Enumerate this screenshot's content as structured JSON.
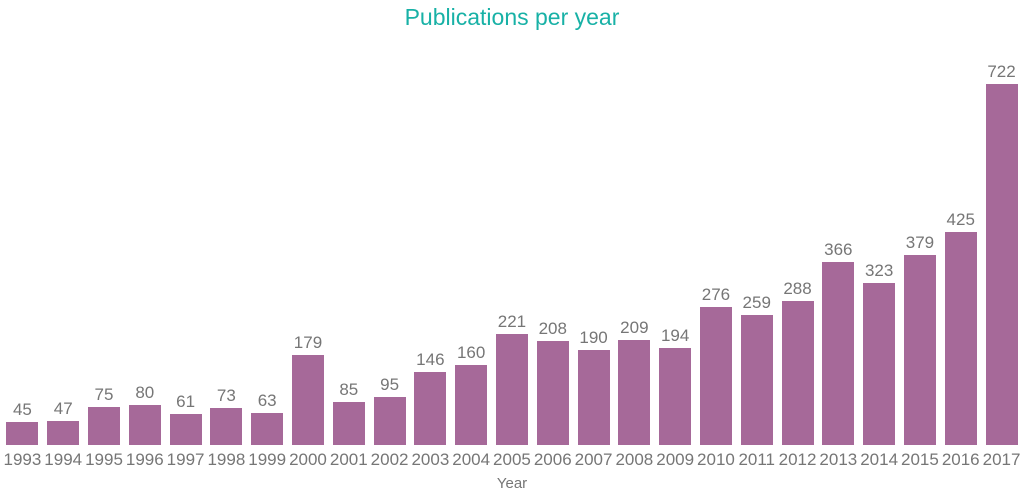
{
  "colors": {
    "bar": "#A66999",
    "title": "#18B1A6",
    "label": "#767676",
    "background": "#FFFFFF"
  },
  "chart_data": {
    "type": "bar",
    "title": "Publications per year",
    "xlabel": "Year",
    "ylabel": "",
    "categories": [
      "1993",
      "1994",
      "1995",
      "1996",
      "1997",
      "1998",
      "1999",
      "2000",
      "2001",
      "2002",
      "2003",
      "2004",
      "2005",
      "2006",
      "2007",
      "2008",
      "2009",
      "2010",
      "2011",
      "2012",
      "2013",
      "2014",
      "2015",
      "2016",
      "2017"
    ],
    "values": [
      45,
      47,
      75,
      80,
      61,
      73,
      63,
      179,
      85,
      95,
      146,
      160,
      221,
      208,
      190,
      209,
      194,
      276,
      259,
      288,
      366,
      323,
      379,
      425,
      722
    ],
    "ylim": [
      0,
      760
    ],
    "grid": false,
    "legend": false,
    "data_labels": true,
    "bar_color": "#A66999"
  }
}
